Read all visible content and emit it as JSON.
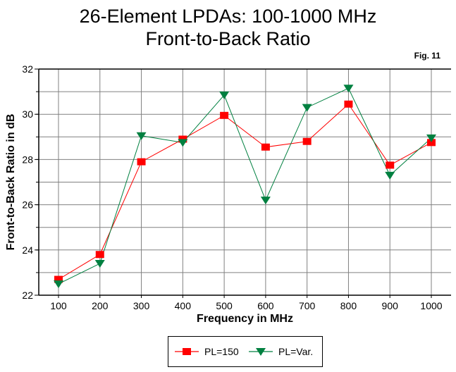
{
  "chart_data": {
    "type": "line",
    "title": "26-Element LPDAs:  100-1000 MHz",
    "subtitle": "Front-to-Back Ratio",
    "annotation": "Fig. 11",
    "xlabel": "Frequency in MHz",
    "ylabel": "Front-to-Back Ratio in dB",
    "x": [
      100,
      200,
      300,
      400,
      500,
      600,
      700,
      800,
      900,
      1000
    ],
    "x_tick_labels": [
      "100",
      "200",
      "300",
      "400",
      "500",
      "600",
      "700",
      "800",
      "900",
      "1000"
    ],
    "y_tick_labels": [
      "22",
      "24",
      "26",
      "28",
      "30",
      "32"
    ],
    "y_ticks": [
      22,
      24,
      26,
      28,
      30,
      32
    ],
    "ylim": [
      22,
      32
    ],
    "xlim": [
      50,
      1050
    ],
    "grid": true,
    "legend_position": "bottom-center",
    "series": [
      {
        "name": "PL=150",
        "color": "#ff0000",
        "marker": "square",
        "values": [
          22.7,
          23.8,
          27.9,
          28.9,
          29.95,
          28.55,
          28.8,
          30.45,
          27.75,
          28.75
        ]
      },
      {
        "name": "PL=Var.",
        "color": "#008040",
        "marker": "triangle-down",
        "values": [
          22.5,
          23.4,
          29.05,
          28.75,
          30.85,
          26.2,
          30.3,
          31.15,
          27.3,
          28.95
        ]
      }
    ]
  }
}
